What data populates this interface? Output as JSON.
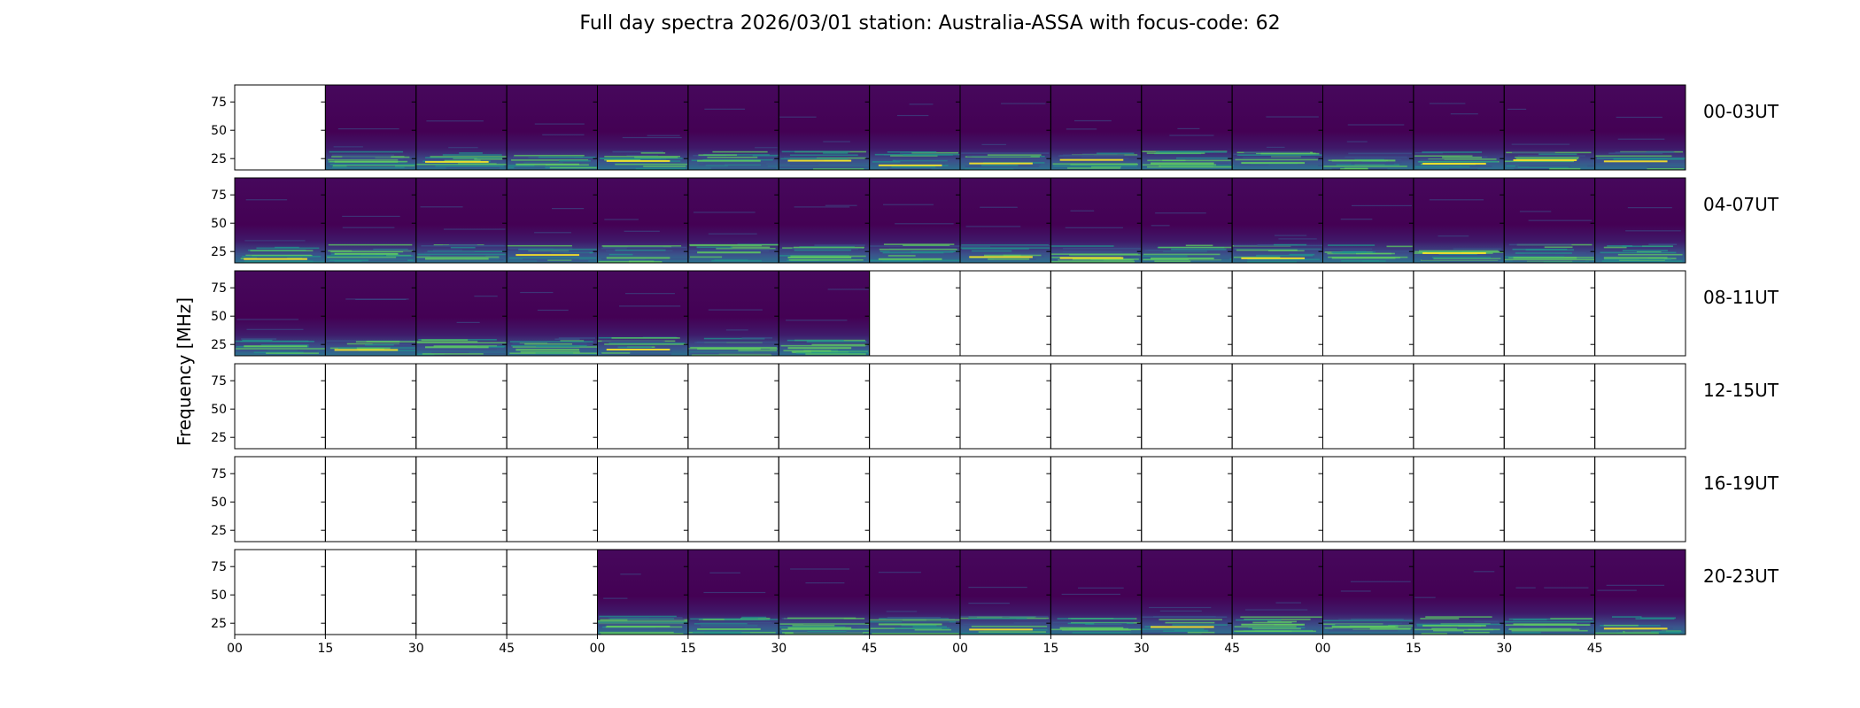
{
  "chart_data": {
    "type": "heatmap",
    "title": "Full day spectra 2026/03/01 station: Australia-ASSA with focus-code: 62",
    "ylabel": "Frequency [MHz]",
    "ylim": [
      15,
      90
    ],
    "yticks": [
      "25",
      "50",
      "75"
    ],
    "ytick_values": [
      25,
      50,
      75
    ],
    "xticks": [
      "00",
      "15",
      "30",
      "45",
      "00",
      "15",
      "30",
      "45",
      "00",
      "15",
      "30",
      "45",
      "00",
      "15",
      "30",
      "45"
    ],
    "segments_per_row": 16,
    "segment_minutes": 15,
    "colormap": [
      "#440154",
      "#3b528b",
      "#21918c",
      "#5ec962",
      "#fde725"
    ],
    "rows": [
      {
        "label": "00-03UT",
        "has_data": [
          0,
          1,
          1,
          1,
          1,
          1,
          1,
          1,
          1,
          1,
          1,
          1,
          1,
          1,
          1,
          1
        ]
      },
      {
        "label": "04-07UT",
        "has_data": [
          1,
          1,
          1,
          1,
          1,
          1,
          1,
          1,
          1,
          1,
          1,
          1,
          1,
          1,
          1,
          1
        ]
      },
      {
        "label": "08-11UT",
        "has_data": [
          1,
          1,
          1,
          1,
          1,
          1,
          1,
          0,
          0,
          0,
          0,
          0,
          0,
          0,
          0,
          0
        ]
      },
      {
        "label": "12-15UT",
        "has_data": [
          0,
          0,
          0,
          0,
          0,
          0,
          0,
          0,
          0,
          0,
          0,
          0,
          0,
          0,
          0,
          0
        ]
      },
      {
        "label": "16-19UT",
        "has_data": [
          0,
          0,
          0,
          0,
          0,
          0,
          0,
          0,
          0,
          0,
          0,
          0,
          0,
          0,
          0,
          0
        ]
      },
      {
        "label": "20-23UT",
        "has_data": [
          0,
          0,
          0,
          0,
          1,
          1,
          1,
          1,
          1,
          1,
          1,
          1,
          1,
          1,
          1,
          1
        ]
      }
    ]
  }
}
